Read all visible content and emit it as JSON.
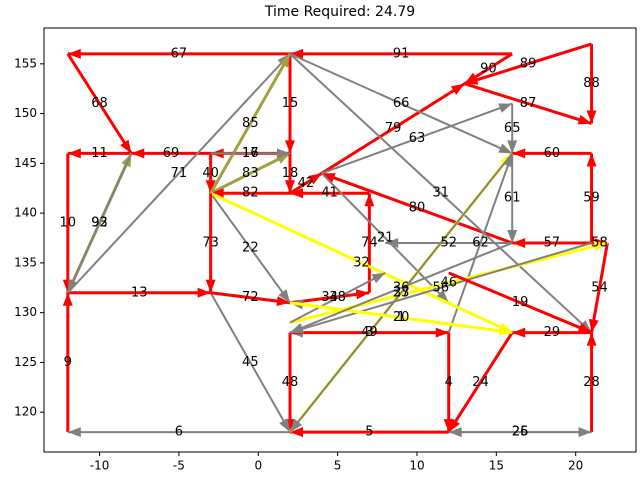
{
  "chart_data": {
    "type": "network",
    "title": "Time Required: 24.79",
    "xlim": [
      -13.5,
      23.8
    ],
    "ylim": [
      116,
      158.6
    ],
    "xticks": [
      -10,
      -5,
      0,
      5,
      10,
      15,
      20
    ],
    "yticks": [
      120,
      125,
      130,
      135,
      140,
      145,
      150,
      155
    ],
    "edges": [
      {
        "label": "67",
        "from": [
          2,
          156
        ],
        "to": [
          -12,
          156
        ],
        "color": "#ff0000"
      },
      {
        "label": "91",
        "from": [
          16,
          156
        ],
        "to": [
          2,
          156
        ],
        "color": "#ff0000"
      },
      {
        "label": "68",
        "from": [
          -12,
          156
        ],
        "to": [
          -8,
          146
        ],
        "color": "#ff0000"
      },
      {
        "label": "11",
        "from": [
          -8,
          146
        ],
        "to": [
          -12,
          146
        ],
        "color": "#ff0000"
      },
      {
        "label": "69",
        "from": [
          -3,
          146
        ],
        "to": [
          -8,
          146
        ],
        "color": "#ff0000"
      },
      {
        "label": "10",
        "from": [
          -12,
          146
        ],
        "to": [
          -12,
          132
        ],
        "color": "#ff0000"
      },
      {
        "label": "9",
        "from": [
          -12,
          118
        ],
        "to": [
          -12,
          132
        ],
        "color": "#ff0000"
      },
      {
        "label": "93",
        "from": [
          -12,
          132
        ],
        "to": [
          -8,
          146
        ],
        "color": "#a0a040"
      },
      {
        "label": "13",
        "from": [
          -12,
          132
        ],
        "to": [
          -3,
          132
        ],
        "color": "#ff0000"
      },
      {
        "label": "6",
        "from": [
          2,
          118
        ],
        "to": [
          -12,
          118
        ],
        "color": "#808080"
      },
      {
        "label": "71",
        "from": [
          -12,
          132
        ],
        "to": [
          2,
          156
        ],
        "color": "#808080"
      },
      {
        "label": "17",
        "from": [
          2,
          146
        ],
        "to": [
          -3,
          146
        ],
        "color": "#ff0000"
      },
      {
        "label": "15",
        "from": [
          2,
          156
        ],
        "to": [
          2,
          146
        ],
        "color": "#ff0000"
      },
      {
        "label": "40",
        "from": [
          -3,
          146
        ],
        "to": [
          -3,
          142
        ],
        "color": "#ff0000"
      },
      {
        "label": "83",
        "from": [
          -3,
          142
        ],
        "to": [
          2,
          146
        ],
        "color": "#a0a040"
      },
      {
        "label": "82",
        "from": [
          2,
          142
        ],
        "to": [
          -3,
          142
        ],
        "color": "#ff0000"
      },
      {
        "label": "85",
        "from": [
          -3,
          142
        ],
        "to": [
          2,
          156
        ],
        "color": "#a0a040"
      },
      {
        "label": "18",
        "from": [
          2,
          146
        ],
        "to": [
          2,
          142
        ],
        "color": "#ff0000"
      },
      {
        "label": "42",
        "from": [
          2,
          142
        ],
        "to": [
          4,
          144
        ],
        "color": "#ff0000"
      },
      {
        "label": "41",
        "from": [
          7,
          142
        ],
        "to": [
          2,
          142
        ],
        "color": "#ff0000"
      },
      {
        "label": "80",
        "from": [
          16,
          137
        ],
        "to": [
          4,
          144
        ],
        "color": "#ff0000"
      },
      {
        "label": "79",
        "from": [
          4,
          144
        ],
        "to": [
          13,
          153
        ],
        "color": "#ff0000"
      },
      {
        "label": "63",
        "from": [
          4,
          144
        ],
        "to": [
          16,
          151
        ],
        "color": "#808080"
      },
      {
        "label": "89",
        "from": [
          21,
          157
        ],
        "to": [
          13,
          153
        ],
        "color": "#ff0000"
      },
      {
        "label": "90",
        "from": [
          16,
          156
        ],
        "to": [
          13,
          153
        ],
        "color": "#ff0000"
      },
      {
        "label": "88",
        "from": [
          21,
          157
        ],
        "to": [
          21,
          149
        ],
        "color": "#ff0000"
      },
      {
        "label": "87",
        "from": [
          13,
          153
        ],
        "to": [
          21,
          149
        ],
        "color": "#ff0000"
      },
      {
        "label": "65",
        "from": [
          16,
          151
        ],
        "to": [
          16,
          146
        ],
        "color": "#808080"
      },
      {
        "label": "66",
        "from": [
          2,
          156
        ],
        "to": [
          16,
          146
        ],
        "color": "#808080"
      },
      {
        "label": "31",
        "from": [
          2,
          156
        ],
        "to": [
          21,
          128
        ],
        "color": "#808080"
      },
      {
        "label": "60",
        "from": [
          21,
          146
        ],
        "to": [
          16,
          146
        ],
        "color": "#ff0000"
      },
      {
        "label": "59",
        "from": [
          21,
          137
        ],
        "to": [
          21,
          146
        ],
        "color": "#ff0000"
      },
      {
        "label": "61",
        "from": [
          16,
          146
        ],
        "to": [
          16,
          137
        ],
        "color": "#808080"
      },
      {
        "label": "57",
        "from": [
          21,
          137
        ],
        "to": [
          16,
          137
        ],
        "color": "#ff0000"
      },
      {
        "label": "58",
        "from": [
          21,
          137
        ],
        "to": [
          22,
          137
        ],
        "color": "#ff0000"
      },
      {
        "label": "54",
        "from": [
          22,
          137
        ],
        "to": [
          21,
          128
        ],
        "color": "#ff0000"
      },
      {
        "label": "28",
        "from": [
          21,
          118
        ],
        "to": [
          21,
          128
        ],
        "color": "#ff0000"
      },
      {
        "label": "26",
        "from": [
          21,
          118
        ],
        "to": [
          12,
          118
        ],
        "color": "#808080"
      },
      {
        "label": "5",
        "from": [
          12,
          118
        ],
        "to": [
          2,
          118
        ],
        "color": "#ff0000"
      },
      {
        "label": "4",
        "from": [
          12,
          128
        ],
        "to": [
          12,
          118
        ],
        "color": "#ff0000"
      },
      {
        "label": "24",
        "from": [
          16,
          128
        ],
        "to": [
          12,
          118
        ],
        "color": "#ff0000"
      },
      {
        "label": "29",
        "from": [
          21,
          128
        ],
        "to": [
          16,
          128
        ],
        "color": "#ff0000"
      },
      {
        "label": "49",
        "from": [
          12,
          128
        ],
        "to": [
          2,
          128
        ],
        "color": "#808080"
      },
      {
        "label": "3",
        "from": [
          2,
          128
        ],
        "to": [
          12,
          128
        ],
        "color": "#ff0000"
      },
      {
        "label": "48",
        "from": [
          2,
          128
        ],
        "to": [
          2,
          118
        ],
        "color": "#ff0000"
      },
      {
        "label": "45",
        "from": [
          -3,
          132
        ],
        "to": [
          2,
          118
        ],
        "color": "#808080"
      },
      {
        "label": "72",
        "from": [
          -3,
          132
        ],
        "to": [
          2,
          131
        ],
        "color": "#ff0000"
      },
      {
        "label": "34",
        "from": [
          2,
          131
        ],
        "to": [
          7,
          132
        ],
        "color": "#ff0000"
      },
      {
        "label": "74",
        "from": [
          7,
          132
        ],
        "to": [
          7,
          142
        ],
        "color": "#ff0000"
      },
      {
        "label": "22",
        "from": [
          -3,
          142
        ],
        "to": [
          2,
          131
        ],
        "color": "#808080"
      },
      {
        "label": "21",
        "from": [
          4,
          144
        ],
        "to": [
          12,
          131
        ],
        "color": "#808080"
      },
      {
        "label": "33",
        "from": [
          2,
          118
        ],
        "to": [
          16,
          146
        ],
        "color": "#ffff00"
      },
      {
        "label": "62",
        "from": [
          12,
          128
        ],
        "to": [
          16,
          146
        ],
        "color": "#808080"
      },
      {
        "label": "32",
        "from": [
          -3,
          142
        ],
        "to": [
          16,
          128
        ],
        "color": "#ffff00"
      },
      {
        "label": "46",
        "from": [
          2,
          129
        ],
        "to": [
          22,
          137
        ],
        "color": "#ffff00"
      },
      {
        "label": "52",
        "from": [
          16,
          137
        ],
        "to": [
          8,
          137
        ],
        "color": "#808080"
      },
      {
        "label": "1",
        "from": [
          16,
          128
        ],
        "to": [
          2,
          131
        ],
        "color": "#808080"
      },
      {
        "label": "56",
        "from": [
          21,
          137
        ],
        "to": [
          2,
          128
        ],
        "color": "#808080"
      },
      {
        "label": "73",
        "from": [
          -3,
          142
        ],
        "to": [
          -3,
          132
        ],
        "color": "#ff0000"
      },
      {
        "label": "38",
        "from": [
          2,
          129
        ],
        "to": [
          8,
          134
        ],
        "color": "#808080"
      },
      {
        "label": "27",
        "from": [
          16,
          146
        ],
        "to": [
          2,
          118
        ],
        "color": "#808080"
      },
      {
        "label": "92",
        "from": [
          -8,
          146
        ],
        "to": [
          -12,
          132
        ],
        "color": "#808080"
      },
      {
        "label": "16",
        "from": [
          -3,
          146
        ],
        "to": [
          2,
          146
        ],
        "color": "#808080"
      },
      {
        "label": "20",
        "from": [
          2,
          131
        ],
        "to": [
          16,
          128
        ],
        "color": "#ffff00"
      },
      {
        "label": "19",
        "from": [
          12,
          134
        ],
        "to": [
          21,
          128
        ],
        "color": "#ff0000"
      },
      {
        "label": "36",
        "from": [
          16,
          137
        ],
        "to": [
          2,
          128
        ],
        "color": "#808080"
      },
      {
        "label": "25",
        "from": [
          12,
          118
        ],
        "to": [
          21,
          118
        ],
        "color": "#808080"
      }
    ]
  }
}
